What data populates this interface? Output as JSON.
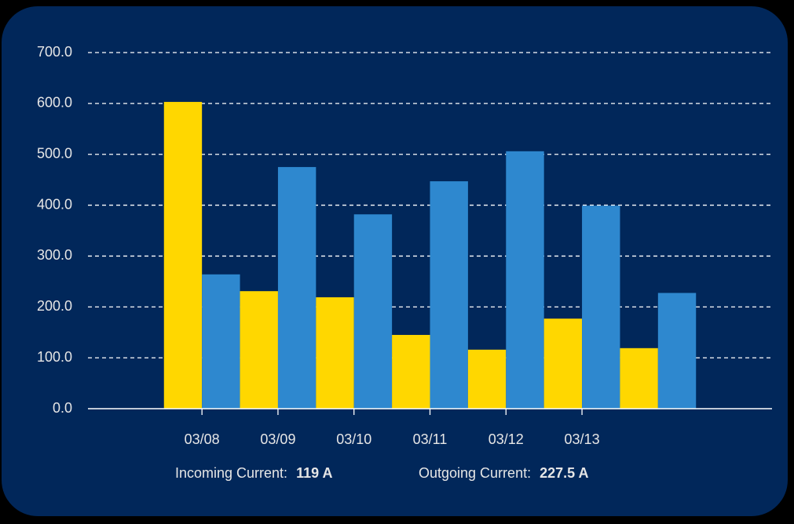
{
  "chart_data": {
    "type": "bar",
    "categories": [
      null,
      "03/08",
      "03/09",
      "03/10",
      "03/11",
      "03/12",
      "03/13",
      null,
      null
    ],
    "series": [
      {
        "color": "#ffd700",
        "values": [
          null,
          603,
          231,
          219,
          145,
          116,
          177,
          119,
          null
        ]
      },
      {
        "color": "#2e88cf",
        "values": [
          null,
          264,
          475,
          382,
          447,
          506,
          399,
          227.5,
          null
        ]
      }
    ],
    "ylim": [
      0,
      700
    ],
    "yticks": [
      {
        "value": 0,
        "label": "0.0"
      },
      {
        "value": 100,
        "label": "100.0"
      },
      {
        "value": 200,
        "label": "200.0"
      },
      {
        "value": 300,
        "label": "300.0"
      },
      {
        "value": 400,
        "label": "400.0"
      },
      {
        "value": 500,
        "label": "500.0"
      },
      {
        "value": 600,
        "label": "600.0"
      },
      {
        "value": 700,
        "label": "700.0"
      }
    ],
    "grid": true,
    "summary": [
      {
        "label": "Incoming Current:",
        "value": "119 A"
      },
      {
        "label": "Outgoing Current:",
        "value": "227.5 A"
      }
    ]
  }
}
